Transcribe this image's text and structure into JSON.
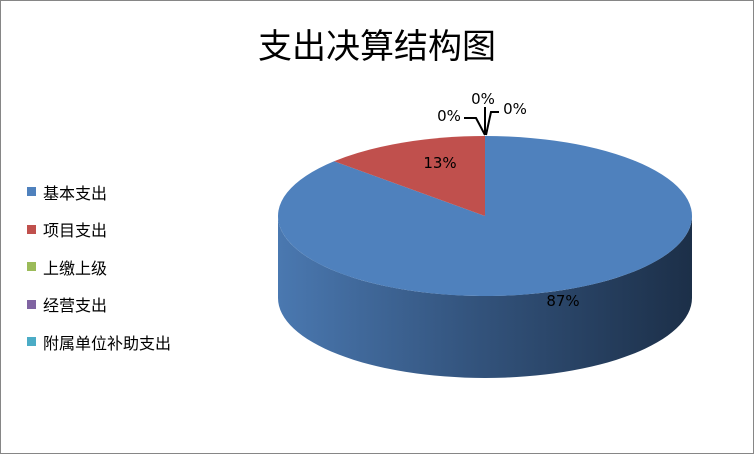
{
  "chart_data": {
    "type": "pie",
    "style": "3d",
    "title": "支出决算结构图",
    "categories": [
      "基本支出",
      "项目支出",
      "上缴上级",
      "经营支出",
      "附属单位补助支出"
    ],
    "values": [
      87,
      13,
      0,
      0,
      0
    ],
    "data_labels": [
      "87%",
      "13%",
      "0%",
      "0%",
      "0%"
    ],
    "colors": [
      "#4F81BD",
      "#C0504D",
      "#9BBB59",
      "#8064A2",
      "#4BACC6"
    ],
    "legend_position": "left"
  }
}
